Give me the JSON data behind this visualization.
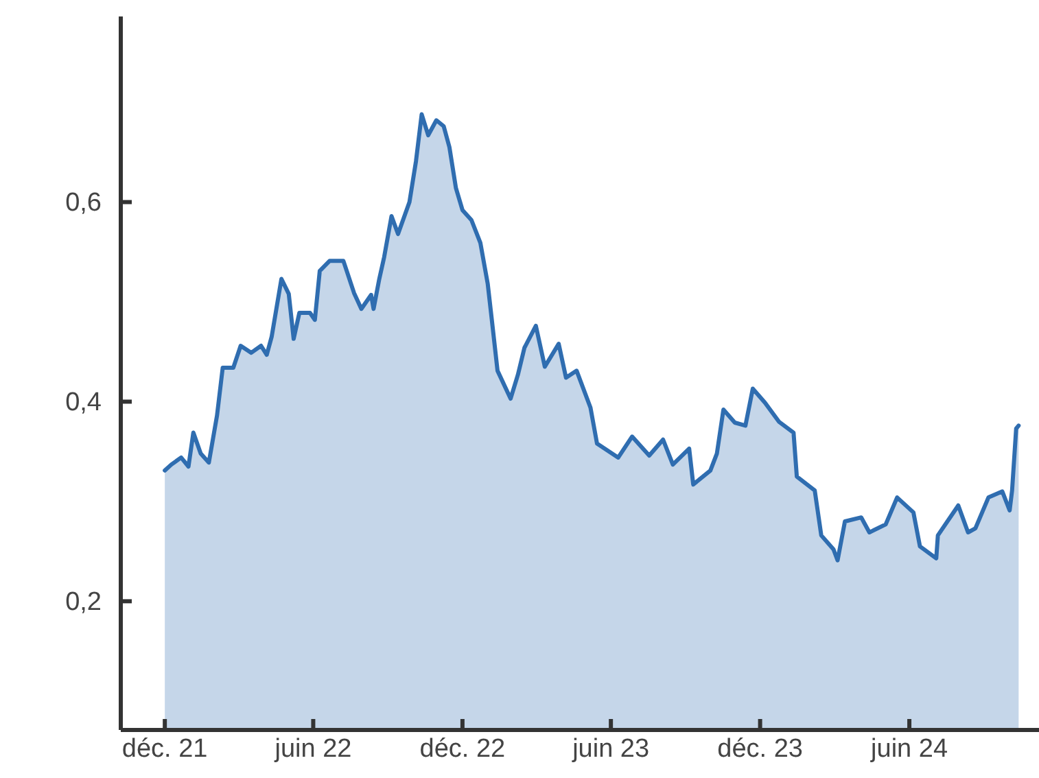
{
  "chart_data": {
    "type": "area",
    "x": [
      "2021-12-01",
      "2021-12-09",
      "2021-12-21",
      "2021-12-30",
      "2022-01-05",
      "2022-01-14",
      "2022-01-24",
      "2022-02-03",
      "2022-02-10",
      "2022-02-23",
      "2022-03-04",
      "2022-03-17",
      "2022-03-29",
      "2022-04-05",
      "2022-04-11",
      "2022-04-23",
      "2022-05-02",
      "2022-05-08",
      "2022-05-15",
      "2022-05-28",
      "2022-06-03",
      "2022-06-09",
      "2022-06-21",
      "2022-07-08",
      "2022-07-21",
      "2022-07-30",
      "2022-08-11",
      "2022-08-14",
      "2022-08-21",
      "2022-08-27",
      "2022-09-05",
      "2022-09-13",
      "2022-09-27",
      "2022-10-05",
      "2022-10-12",
      "2022-10-20",
      "2022-10-30",
      "2022-11-08",
      "2022-11-15",
      "2022-11-23",
      "2022-12-01",
      "2022-12-12",
      "2022-12-23",
      "2023-01-01",
      "2023-01-06",
      "2023-01-13",
      "2023-01-29",
      "2023-02-07",
      "2023-02-15",
      "2023-03-01",
      "2023-03-12",
      "2023-03-29",
      "2023-04-07",
      "2023-04-20",
      "2023-05-07",
      "2023-05-15",
      "2023-06-10",
      "2023-06-27",
      "2023-07-18",
      "2023-08-04",
      "2023-08-16",
      "2023-09-05",
      "2023-09-10",
      "2023-10-01",
      "2023-10-09",
      "2023-10-17",
      "2023-10-31",
      "2023-11-13",
      "2023-11-22",
      "2023-12-07",
      "2023-12-24",
      "2024-01-11",
      "2024-01-15",
      "2024-02-06",
      "2024-02-14",
      "2024-02-29",
      "2024-03-05",
      "2024-03-14",
      "2024-04-03",
      "2024-04-13",
      "2024-05-03",
      "2024-05-17",
      "2024-06-06",
      "2024-06-14",
      "2024-07-04",
      "2024-07-06",
      "2024-07-31",
      "2024-08-12",
      "2024-08-21",
      "2024-09-06",
      "2024-09-23",
      "2024-10-02",
      "2024-10-05",
      "2024-10-10",
      "2024-10-13"
    ],
    "series": [
      {
        "color": "#2f6db0",
        "values": [
          0.331,
          0.337,
          0.344,
          0.335,
          0.369,
          0.348,
          0.339,
          0.386,
          0.434,
          0.434,
          0.456,
          0.449,
          0.456,
          0.447,
          0.465,
          0.523,
          0.508,
          0.463,
          0.489,
          0.489,
          0.482,
          0.531,
          0.541,
          0.541,
          0.509,
          0.493,
          0.507,
          0.493,
          0.523,
          0.545,
          0.586,
          0.568,
          0.6,
          0.641,
          0.688,
          0.667,
          0.682,
          0.676,
          0.655,
          0.614,
          0.592,
          0.582,
          0.559,
          0.518,
          0.482,
          0.431,
          0.403,
          0.427,
          0.454,
          0.476,
          0.435,
          0.458,
          0.424,
          0.431,
          0.394,
          0.358,
          0.344,
          0.365,
          0.346,
          0.362,
          0.337,
          0.353,
          0.317,
          0.331,
          0.348,
          0.392,
          0.379,
          0.376,
          0.413,
          0.399,
          0.38,
          0.369,
          0.325,
          0.311,
          0.266,
          0.252,
          0.241,
          0.28,
          0.284,
          0.269,
          0.277,
          0.304,
          0.289,
          0.255,
          0.243,
          0.266,
          0.296,
          0.269,
          0.273,
          0.304,
          0.31,
          0.291,
          0.311,
          0.373,
          0.376
        ]
      }
    ],
    "xlim": [
      "2021-10-08",
      "2024-11-07"
    ],
    "xticks": [
      {
        "value": "2021-12-01",
        "label": "déc. 21"
      },
      {
        "value": "2022-06-01",
        "label": "juin 22"
      },
      {
        "value": "2022-12-01",
        "label": "déc. 22"
      },
      {
        "value": "2023-06-01",
        "label": "juin 23"
      },
      {
        "value": "2023-12-01",
        "label": "déc. 23"
      },
      {
        "value": "2024-06-01",
        "label": "juin 24"
      }
    ],
    "ylim": [
      0.071,
      0.786
    ],
    "yticks": [
      {
        "value": 0.2,
        "label": "0,2"
      },
      {
        "value": 0.4,
        "label": "0,4"
      },
      {
        "value": 0.6,
        "label": "0,6"
      }
    ],
    "grid": false,
    "line_style": "solid",
    "marker": "none"
  }
}
